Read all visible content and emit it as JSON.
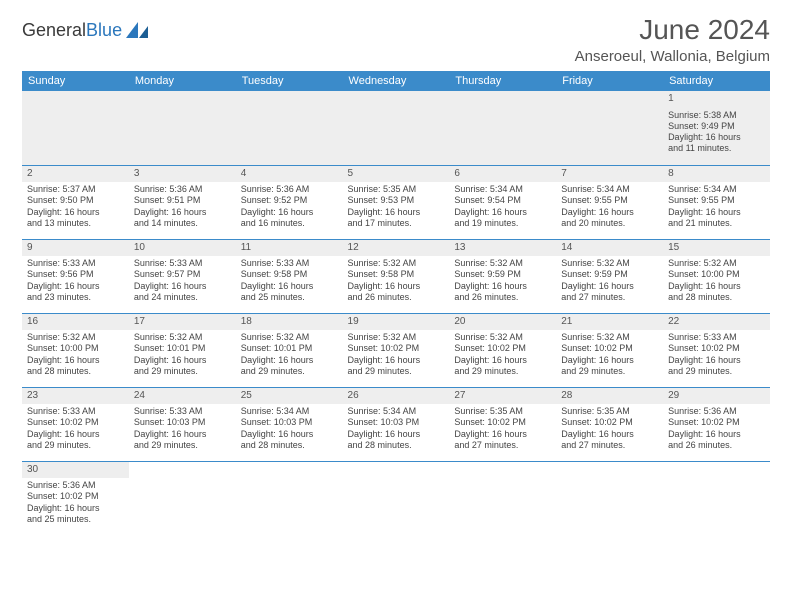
{
  "brand": {
    "part1": "General",
    "part2": "Blue"
  },
  "title": "June 2024",
  "location": "Anseroeul, Wallonia, Belgium",
  "colors": {
    "header_bg": "#3b8bca",
    "header_text": "#ffffff",
    "border": "#3b8bca",
    "grey_row": "#eeeeee",
    "text": "#444444"
  },
  "weekdays": [
    "Sunday",
    "Monday",
    "Tuesday",
    "Wednesday",
    "Thursday",
    "Friday",
    "Saturday"
  ],
  "weeks": [
    [
      null,
      null,
      null,
      null,
      null,
      null,
      {
        "n": "1",
        "sr": "Sunrise: 5:38 AM",
        "ss": "Sunset: 9:49 PM",
        "d1": "Daylight: 16 hours",
        "d2": "and 11 minutes."
      }
    ],
    [
      {
        "n": "2",
        "sr": "Sunrise: 5:37 AM",
        "ss": "Sunset: 9:50 PM",
        "d1": "Daylight: 16 hours",
        "d2": "and 13 minutes."
      },
      {
        "n": "3",
        "sr": "Sunrise: 5:36 AM",
        "ss": "Sunset: 9:51 PM",
        "d1": "Daylight: 16 hours",
        "d2": "and 14 minutes."
      },
      {
        "n": "4",
        "sr": "Sunrise: 5:36 AM",
        "ss": "Sunset: 9:52 PM",
        "d1": "Daylight: 16 hours",
        "d2": "and 16 minutes."
      },
      {
        "n": "5",
        "sr": "Sunrise: 5:35 AM",
        "ss": "Sunset: 9:53 PM",
        "d1": "Daylight: 16 hours",
        "d2": "and 17 minutes."
      },
      {
        "n": "6",
        "sr": "Sunrise: 5:34 AM",
        "ss": "Sunset: 9:54 PM",
        "d1": "Daylight: 16 hours",
        "d2": "and 19 minutes."
      },
      {
        "n": "7",
        "sr": "Sunrise: 5:34 AM",
        "ss": "Sunset: 9:55 PM",
        "d1": "Daylight: 16 hours",
        "d2": "and 20 minutes."
      },
      {
        "n": "8",
        "sr": "Sunrise: 5:34 AM",
        "ss": "Sunset: 9:55 PM",
        "d1": "Daylight: 16 hours",
        "d2": "and 21 minutes."
      }
    ],
    [
      {
        "n": "9",
        "sr": "Sunrise: 5:33 AM",
        "ss": "Sunset: 9:56 PM",
        "d1": "Daylight: 16 hours",
        "d2": "and 23 minutes."
      },
      {
        "n": "10",
        "sr": "Sunrise: 5:33 AM",
        "ss": "Sunset: 9:57 PM",
        "d1": "Daylight: 16 hours",
        "d2": "and 24 minutes."
      },
      {
        "n": "11",
        "sr": "Sunrise: 5:33 AM",
        "ss": "Sunset: 9:58 PM",
        "d1": "Daylight: 16 hours",
        "d2": "and 25 minutes."
      },
      {
        "n": "12",
        "sr": "Sunrise: 5:32 AM",
        "ss": "Sunset: 9:58 PM",
        "d1": "Daylight: 16 hours",
        "d2": "and 26 minutes."
      },
      {
        "n": "13",
        "sr": "Sunrise: 5:32 AM",
        "ss": "Sunset: 9:59 PM",
        "d1": "Daylight: 16 hours",
        "d2": "and 26 minutes."
      },
      {
        "n": "14",
        "sr": "Sunrise: 5:32 AM",
        "ss": "Sunset: 9:59 PM",
        "d1": "Daylight: 16 hours",
        "d2": "and 27 minutes."
      },
      {
        "n": "15",
        "sr": "Sunrise: 5:32 AM",
        "ss": "Sunset: 10:00 PM",
        "d1": "Daylight: 16 hours",
        "d2": "and 28 minutes."
      }
    ],
    [
      {
        "n": "16",
        "sr": "Sunrise: 5:32 AM",
        "ss": "Sunset: 10:00 PM",
        "d1": "Daylight: 16 hours",
        "d2": "and 28 minutes."
      },
      {
        "n": "17",
        "sr": "Sunrise: 5:32 AM",
        "ss": "Sunset: 10:01 PM",
        "d1": "Daylight: 16 hours",
        "d2": "and 29 minutes."
      },
      {
        "n": "18",
        "sr": "Sunrise: 5:32 AM",
        "ss": "Sunset: 10:01 PM",
        "d1": "Daylight: 16 hours",
        "d2": "and 29 minutes."
      },
      {
        "n": "19",
        "sr": "Sunrise: 5:32 AM",
        "ss": "Sunset: 10:02 PM",
        "d1": "Daylight: 16 hours",
        "d2": "and 29 minutes."
      },
      {
        "n": "20",
        "sr": "Sunrise: 5:32 AM",
        "ss": "Sunset: 10:02 PM",
        "d1": "Daylight: 16 hours",
        "d2": "and 29 minutes."
      },
      {
        "n": "21",
        "sr": "Sunrise: 5:32 AM",
        "ss": "Sunset: 10:02 PM",
        "d1": "Daylight: 16 hours",
        "d2": "and 29 minutes."
      },
      {
        "n": "22",
        "sr": "Sunrise: 5:33 AM",
        "ss": "Sunset: 10:02 PM",
        "d1": "Daylight: 16 hours",
        "d2": "and 29 minutes."
      }
    ],
    [
      {
        "n": "23",
        "sr": "Sunrise: 5:33 AM",
        "ss": "Sunset: 10:02 PM",
        "d1": "Daylight: 16 hours",
        "d2": "and 29 minutes."
      },
      {
        "n": "24",
        "sr": "Sunrise: 5:33 AM",
        "ss": "Sunset: 10:03 PM",
        "d1": "Daylight: 16 hours",
        "d2": "and 29 minutes."
      },
      {
        "n": "25",
        "sr": "Sunrise: 5:34 AM",
        "ss": "Sunset: 10:03 PM",
        "d1": "Daylight: 16 hours",
        "d2": "and 28 minutes."
      },
      {
        "n": "26",
        "sr": "Sunrise: 5:34 AM",
        "ss": "Sunset: 10:03 PM",
        "d1": "Daylight: 16 hours",
        "d2": "and 28 minutes."
      },
      {
        "n": "27",
        "sr": "Sunrise: 5:35 AM",
        "ss": "Sunset: 10:02 PM",
        "d1": "Daylight: 16 hours",
        "d2": "and 27 minutes."
      },
      {
        "n": "28",
        "sr": "Sunrise: 5:35 AM",
        "ss": "Sunset: 10:02 PM",
        "d1": "Daylight: 16 hours",
        "d2": "and 27 minutes."
      },
      {
        "n": "29",
        "sr": "Sunrise: 5:36 AM",
        "ss": "Sunset: 10:02 PM",
        "d1": "Daylight: 16 hours",
        "d2": "and 26 minutes."
      }
    ],
    [
      {
        "n": "30",
        "sr": "Sunrise: 5:36 AM",
        "ss": "Sunset: 10:02 PM",
        "d1": "Daylight: 16 hours",
        "d2": "and 25 minutes."
      },
      null,
      null,
      null,
      null,
      null,
      null
    ]
  ]
}
